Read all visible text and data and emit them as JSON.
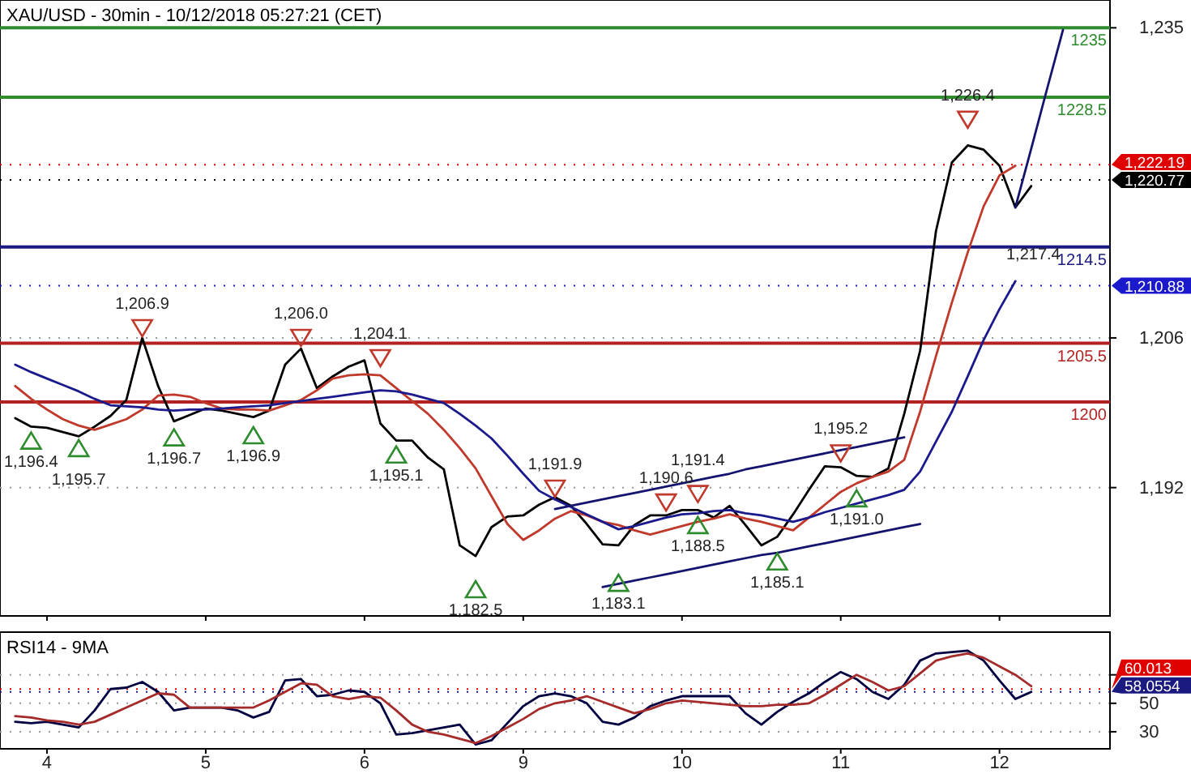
{
  "chart_data": [
    {
      "type": "line",
      "title": "XAU/USD - 30min - 10/12/2018 05:27:21 (CET)",
      "categories": [
        null,
        null,
        "4",
        null,
        null,
        null,
        null,
        null,
        null,
        null,
        null,
        null,
        "5",
        null,
        null,
        null,
        null,
        null,
        null,
        null,
        null,
        null,
        "6",
        null,
        null,
        null,
        null,
        null,
        null,
        null,
        null,
        null,
        "9",
        null,
        null,
        null,
        null,
        null,
        null,
        null,
        null,
        null,
        "10",
        null,
        null,
        null,
        null,
        null,
        null,
        null,
        null,
        null,
        "11",
        null,
        null,
        null,
        null,
        null,
        null,
        null,
        null,
        null,
        "12",
        null,
        null,
        null,
        null,
        null,
        null
      ],
      "ylim": [
        1180,
        1237.6
      ],
      "yticks": [
        {
          "value": 1192,
          "label": "1,192"
        },
        {
          "value": 1206,
          "label": "1,206"
        },
        {
          "value": 1235,
          "label": "1,235"
        }
      ],
      "grid": "y",
      "tick_labels": "y",
      "series": [
        {
          "color": "#000000",
          "values": [
            1198.5,
            1197.7,
            1197.6,
            1197.2,
            1196.8,
            1197.7,
            1198.7,
            1200.2,
            1206.0,
            1201.5,
            1198.2,
            1198.8,
            1199.4,
            1199.2,
            1198.9,
            1198.6,
            1199.2,
            1203.5,
            1205.0,
            1201.3,
            1202.4,
            1203.3,
            1203.9,
            1198.0,
            1196.4,
            1196.4,
            1194.8,
            1193.7,
            1186.6,
            1185.6,
            1188.3,
            1189.3,
            1189.4,
            1190.4,
            1191.1,
            1190.3,
            1188.6,
            1186.7,
            1186.6,
            1188.5,
            1189.4,
            1189.4,
            1189.9,
            1189.9,
            1189.2,
            1190.3,
            1188.5,
            1186.6,
            1187.4,
            1189.5,
            1191.8,
            1194.0,
            1193.9,
            1193.1,
            1193.0,
            1193.8,
            1198.9,
            1204.8,
            1216.0,
            1222.4,
            1224.0,
            1223.6,
            1222.1,
            1218.2,
            1220.2,
            null,
            null,
            null,
            null
          ]
        },
        {
          "color": "#c0392b",
          "values": [
            1201.5,
            1200.3,
            1199.3,
            1198.4,
            1197.8,
            1197.4,
            1197.9,
            1198.4,
            1199.3,
            1200.6,
            1200.7,
            1200.5,
            1199.9,
            1199.4,
            1199.3,
            1199.3,
            1199.2,
            1199.7,
            1200.2,
            1201.1,
            1202.2,
            1202.5,
            1202.6,
            1202.5,
            1201.3,
            1200.1,
            1198.9,
            1197.4,
            1195.7,
            1193.8,
            1191.2,
            1188.6,
            1187.1,
            1188.0,
            1189.1,
            1189.8,
            1189.4,
            1188.8,
            1188.5,
            1188.0,
            1187.6,
            1188.0,
            1188.4,
            1188.8,
            1189.1,
            1189.5,
            1189.1,
            1188.8,
            1188.4,
            1188.0,
            1189.2,
            1190.4,
            1191.6,
            1192.4,
            1193.0,
            1193.5,
            1194.6,
            1199.1,
            1204.3,
            1209.3,
            1214.0,
            1218.3,
            1221.2,
            1222.1,
            null,
            null,
            null,
            null,
            null
          ]
        },
        {
          "color": "#1a1a8c",
          "values": [
            1203.5,
            1202.8,
            1202.2,
            1201.6,
            1201.0,
            1200.3,
            1199.7,
            1199.6,
            1199.5,
            1199.3,
            1199.2,
            1199.3,
            1199.3,
            1199.4,
            1199.5,
            1199.6,
            1199.7,
            1199.9,
            1200.1,
            1200.3,
            1200.5,
            1200.7,
            1200.9,
            1201.1,
            1201.0,
            1200.7,
            1200.3,
            1199.9,
            1198.9,
            1197.8,
            1196.6,
            1195.0,
            1193.3,
            1191.7,
            1190.9,
            1190.2,
            1189.5,
            1188.8,
            1188.1,
            1188.4,
            1188.8,
            1189.2,
            1189.5,
            1189.6,
            1189.8,
            1189.9,
            1189.6,
            1189.4,
            1189.1,
            1188.8,
            1189.2,
            1189.7,
            1190.1,
            1190.5,
            1190.9,
            1191.3,
            1191.8,
            1193.5,
            1196.3,
            1199.1,
            1202.4,
            1205.8,
            1208.7,
            1211.3,
            null,
            null,
            null,
            null,
            null
          ]
        },
        {
          "color": "#14146e",
          "values": [
            null,
            null,
            null,
            null,
            null,
            null,
            null,
            null,
            null,
            null,
            null,
            null,
            null,
            null,
            null,
            null,
            null,
            null,
            null,
            null,
            null,
            null,
            null,
            null,
            null,
            null,
            null,
            null,
            null,
            null,
            null,
            null,
            null,
            null,
            1190.0,
            1190.3,
            1190.6,
            1190.9,
            1191.2,
            1191.5,
            1191.8,
            1192.1,
            1192.4,
            1192.7,
            1193.0,
            1193.3,
            1193.7,
            1194.0,
            1194.3,
            1194.6,
            1194.9,
            1195.2,
            1195.5,
            1195.8,
            1196.1,
            1196.4,
            1196.7,
            null,
            null,
            null,
            null,
            null,
            null,
            null,
            null,
            null,
            null,
            null,
            null
          ]
        },
        {
          "color": "#14146e",
          "values": [
            null,
            null,
            null,
            null,
            null,
            null,
            null,
            null,
            null,
            null,
            null,
            null,
            null,
            null,
            null,
            null,
            null,
            null,
            null,
            null,
            null,
            null,
            null,
            null,
            null,
            null,
            null,
            null,
            null,
            null,
            null,
            null,
            null,
            null,
            null,
            null,
            null,
            1182.7,
            1183.0,
            1183.3,
            1183.6,
            1183.9,
            1184.2,
            1184.5,
            1184.8,
            1185.1,
            1185.4,
            1185.7,
            1185.9,
            1186.2,
            1186.5,
            1186.8,
            1187.1,
            1187.4,
            1187.7,
            1188.0,
            1188.3,
            1188.6,
            null,
            null,
            null,
            null,
            null,
            null,
            null,
            null,
            null,
            null,
            null
          ]
        },
        {
          "color": "#14146e",
          "values": [
            null,
            null,
            null,
            null,
            null,
            null,
            null,
            null,
            null,
            null,
            null,
            null,
            null,
            null,
            null,
            null,
            null,
            null,
            null,
            null,
            null,
            null,
            null,
            null,
            null,
            null,
            null,
            null,
            null,
            null,
            null,
            null,
            null,
            null,
            null,
            null,
            null,
            null,
            null,
            null,
            null,
            null,
            null,
            null,
            null,
            null,
            null,
            null,
            null,
            null,
            null,
            null,
            null,
            null,
            null,
            null,
            null,
            null,
            null,
            null,
            null,
            null,
            null,
            1218.2,
            1223.7,
            1229.3,
            1234.8,
            null,
            null
          ]
        },
        {
          "type": "scatter",
          "color": "#c0392b",
          "values": [
            null,
            null,
            null,
            null,
            null,
            null,
            null,
            null,
            1206.9,
            null,
            null,
            null,
            null,
            null,
            null,
            null,
            null,
            null,
            1206.0,
            null,
            null,
            null,
            null,
            1204.1,
            null,
            null,
            null,
            null,
            null,
            null,
            null,
            null,
            null,
            null,
            1191.9,
            null,
            null,
            null,
            null,
            null,
            null,
            1190.6,
            null,
            1191.4,
            null,
            null,
            null,
            null,
            null,
            null,
            null,
            null,
            1195.2,
            null,
            null,
            null,
            null,
            null,
            null,
            null,
            1226.4,
            null,
            null,
            null,
            null,
            null,
            null,
            null,
            null
          ],
          "value_labels": [
            null,
            null,
            null,
            null,
            null,
            null,
            null,
            null,
            "1,206.9",
            null,
            null,
            null,
            null,
            null,
            null,
            null,
            null,
            null,
            "1,206.0",
            null,
            null,
            null,
            null,
            "1,204.1",
            null,
            null,
            null,
            null,
            null,
            null,
            null,
            null,
            null,
            null,
            "1,191.9",
            null,
            null,
            null,
            null,
            null,
            null,
            "1,190.6",
            null,
            "1,191.4",
            null,
            null,
            null,
            null,
            null,
            null,
            null,
            null,
            "1,195.2",
            null,
            null,
            null,
            null,
            null,
            null,
            null,
            "1,226.4",
            null,
            null,
            null,
            null,
            null,
            null,
            null,
            null
          ]
        },
        {
          "type": "scatter",
          "color": "#2e8b2e",
          "values": [
            null,
            1196.4,
            null,
            null,
            1195.7,
            null,
            null,
            null,
            null,
            null,
            1196.7,
            null,
            null,
            null,
            null,
            1196.9,
            null,
            null,
            null,
            null,
            null,
            null,
            null,
            null,
            1195.1,
            null,
            null,
            null,
            null,
            1182.5,
            null,
            null,
            null,
            null,
            null,
            null,
            null,
            null,
            1183.1,
            null,
            null,
            null,
            null,
            1188.5,
            null,
            null,
            null,
            null,
            1185.1,
            null,
            null,
            null,
            null,
            1191.0,
            null,
            null,
            null,
            null,
            null,
            null,
            null,
            null,
            null,
            null,
            null,
            null,
            null,
            null,
            null
          ],
          "value_labels": [
            null,
            "1,196.4",
            null,
            null,
            "1,195.7",
            null,
            null,
            null,
            null,
            null,
            "1,196.7",
            null,
            null,
            null,
            null,
            "1,196.9",
            null,
            null,
            null,
            null,
            null,
            null,
            null,
            null,
            "1,195.1",
            null,
            null,
            null,
            null,
            "1,182.5",
            null,
            null,
            null,
            null,
            null,
            null,
            null,
            null,
            "1,183.1",
            null,
            null,
            null,
            null,
            "1,188.5",
            null,
            null,
            null,
            null,
            "1,185.1",
            null,
            null,
            null,
            null,
            "1,191.0",
            null,
            null,
            null,
            null,
            null,
            null,
            null,
            null,
            null,
            null,
            null,
            null,
            null,
            null,
            null
          ]
        }
      ],
      "ref_lines": [
        {
          "axis": "y",
          "value": 1235,
          "label": "1235",
          "color": "#2e8b2e",
          "line_style": "solid"
        },
        {
          "axis": "y",
          "value": 1228.5,
          "label": "1228.5",
          "color": "#2e8b2e",
          "line_style": "solid"
        },
        {
          "axis": "y",
          "value": 1214.5,
          "label": "1214.5",
          "color": "#1a1a80",
          "line_style": "solid"
        },
        {
          "axis": "y",
          "value": 1205.5,
          "label": "1205.5",
          "color": "#b22222",
          "line_style": "solid"
        },
        {
          "axis": "y",
          "value": 1200,
          "label": "1200",
          "color": "#b22222",
          "line_style": "solid"
        },
        {
          "axis": "y",
          "value": 1222.19,
          "label": "1,222.19",
          "color": "#e00000",
          "line_style": "dotted"
        },
        {
          "axis": "y",
          "value": 1220.77,
          "label": "1,220.77",
          "color": "#000000",
          "line_style": "dotted"
        },
        {
          "axis": "y",
          "value": 1210.88,
          "label": "1,210.88",
          "color": "#1a1acc",
          "line_style": "dotted"
        }
      ],
      "annotations": [
        "1,217.4"
      ]
    },
    {
      "type": "line",
      "title": "RSI14 - 9MA",
      "categories": [
        null,
        null,
        "4",
        null,
        null,
        null,
        null,
        null,
        null,
        null,
        null,
        null,
        "5",
        null,
        null,
        null,
        null,
        null,
        null,
        null,
        null,
        null,
        "6",
        null,
        null,
        null,
        null,
        null,
        null,
        null,
        null,
        null,
        "9",
        null,
        null,
        null,
        null,
        null,
        null,
        null,
        null,
        null,
        "10",
        null,
        null,
        null,
        null,
        null,
        null,
        null,
        null,
        null,
        "11",
        null,
        null,
        null,
        null,
        null,
        null,
        null,
        null,
        null,
        "12",
        null,
        null,
        null,
        null,
        null,
        null
      ],
      "ylim": [
        18,
        100
      ],
      "yticks": [
        30,
        50,
        {
          "value": 70,
          "label": null
        }
      ],
      "grid": "y",
      "series": [
        {
          "color": "#000040",
          "values": [
            37,
            36,
            37,
            35,
            33,
            45,
            60,
            61,
            65,
            58,
            45,
            47,
            47,
            47,
            45,
            40,
            44,
            66,
            67,
            55,
            56,
            59,
            58,
            50,
            28,
            29,
            31,
            33,
            35,
            21,
            24,
            36,
            48,
            55,
            57,
            55,
            50,
            37,
            35,
            40,
            48,
            52,
            55,
            55,
            55,
            55,
            43,
            35,
            44,
            51,
            57,
            65,
            72,
            67,
            58,
            53,
            63,
            80,
            85,
            86,
            87,
            80,
            66,
            53,
            58,
            null,
            null,
            null,
            null
          ]
        },
        {
          "color": "#a52a2a",
          "values": [
            41,
            40,
            38,
            37,
            35,
            37,
            42,
            47,
            52,
            57,
            56,
            47,
            47,
            47,
            47,
            47,
            52,
            58,
            64,
            63,
            55,
            53,
            55,
            54,
            45,
            35,
            30,
            28,
            25,
            22,
            27,
            33,
            39,
            46,
            50,
            52,
            55,
            51,
            47,
            43,
            46,
            50,
            52,
            51,
            50,
            49,
            48,
            48,
            49,
            49,
            50,
            56,
            63,
            70,
            65,
            59,
            62,
            71,
            80,
            83,
            85,
            82,
            76,
            70,
            62,
            null,
            null,
            null,
            null
          ]
        }
      ],
      "ref_lines": [
        {
          "axis": "y",
          "value": 60.013,
          "label": "60.013",
          "color": "#e00000",
          "line_style": "dotted"
        },
        {
          "axis": "y",
          "value": 58.0554,
          "label": "58.0554",
          "color": "#1a1a80",
          "line_style": "dotted"
        }
      ]
    }
  ]
}
